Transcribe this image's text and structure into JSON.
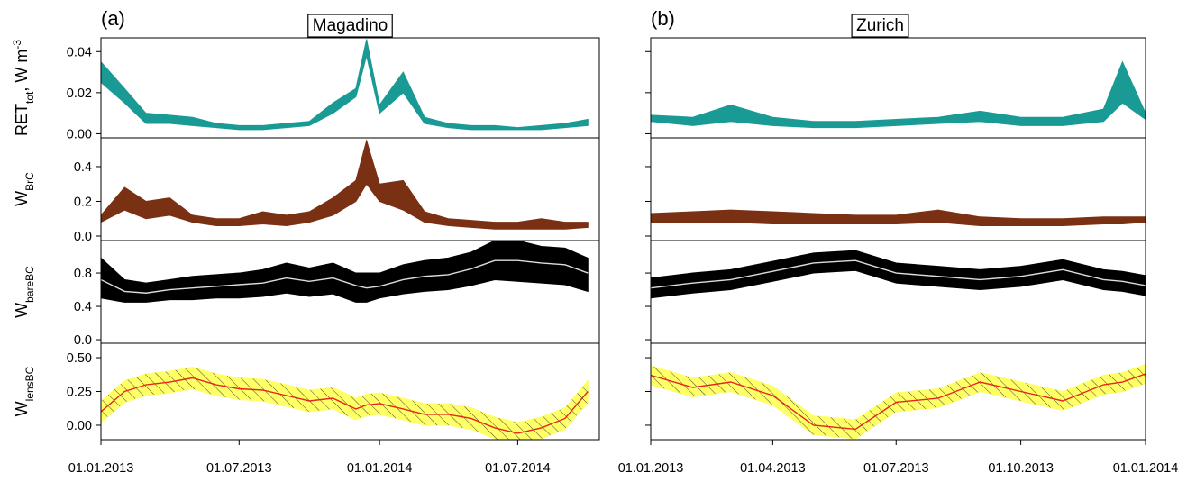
{
  "chart_data": [
    {
      "type": "band",
      "label": "(a)",
      "title": "Magadino",
      "x": [
        "2013-01-01",
        "2013-02-01",
        "2013-03-01",
        "2013-04-01",
        "2013-05-01",
        "2013-06-01",
        "2013-07-01",
        "2013-08-01",
        "2013-09-01",
        "2013-10-01",
        "2013-11-01",
        "2013-12-01",
        "2013-12-15",
        "2014-01-01",
        "2014-02-01",
        "2014-03-01",
        "2014-04-01",
        "2014-05-01",
        "2014-06-01",
        "2014-07-01",
        "2014-08-01",
        "2014-09-01",
        "2014-10-01"
      ],
      "xlim": [
        "2013-01-01",
        "2014-10-16"
      ],
      "xticks": [
        {
          "value": "2013-01-01",
          "label": "01.01.2013"
        },
        {
          "value": "2013-07-01",
          "label": "01.07.2013"
        },
        {
          "value": "2014-01-01",
          "label": "01.01.2014"
        },
        {
          "value": "2014-07-01",
          "label": "01.07.2014"
        }
      ],
      "panels": [
        {
          "ylabel": [
            {
              "text": "RET"
            },
            {
              "text": "tot",
              "shift": "sub"
            },
            {
              "text": ", W m"
            },
            {
              "text": "-3",
              "shift": "super"
            }
          ],
          "ylim": [
            -0.002,
            0.0467
          ],
          "yticks": [
            {
              "value": 0,
              "label": "0.00"
            },
            {
              "value": 0.02,
              "label": "0.02"
            },
            {
              "value": 0.04,
              "label": "0.04"
            }
          ],
          "band": {
            "color": "#1a9a94",
            "lower": [
              0.025,
              0.015,
              0.005,
              0.005,
              0.004,
              0.003,
              0.002,
              0.002,
              0.003,
              0.004,
              0.01,
              0.018,
              0.038,
              0.01,
              0.02,
              0.005,
              0.003,
              0.002,
              0.002,
              0.002,
              0.002,
              0.003,
              0.004
            ],
            "upper": [
              0.035,
              0.022,
              0.01,
              0.009,
              0.008,
              0.005,
              0.004,
              0.004,
              0.005,
              0.006,
              0.015,
              0.022,
              0.046,
              0.014,
              0.03,
              0.008,
              0.005,
              0.004,
              0.004,
              0.003,
              0.004,
              0.005,
              0.007
            ]
          }
        },
        {
          "ylabel": [
            {
              "text": "W"
            },
            {
              "text": "BrC",
              "shift": "sub"
            }
          ],
          "ylim": [
            -0.026,
            0.566
          ],
          "yticks": [
            {
              "value": 0,
              "label": "0.0"
            },
            {
              "value": 0.2,
              "label": "0.2"
            },
            {
              "value": 0.4,
              "label": "0.4"
            }
          ],
          "band": {
            "color": "#7a3012",
            "lower": [
              0.08,
              0.15,
              0.1,
              0.12,
              0.08,
              0.06,
              0.06,
              0.07,
              0.06,
              0.08,
              0.12,
              0.2,
              0.3,
              0.2,
              0.15,
              0.08,
              0.06,
              0.05,
              0.04,
              0.04,
              0.04,
              0.04,
              0.05
            ],
            "upper": [
              0.12,
              0.28,
              0.2,
              0.22,
              0.12,
              0.1,
              0.1,
              0.14,
              0.12,
              0.14,
              0.22,
              0.32,
              0.55,
              0.3,
              0.32,
              0.14,
              0.1,
              0.09,
              0.08,
              0.08,
              0.1,
              0.08,
              0.08
            ]
          }
        },
        {
          "ylabel": [
            {
              "text": "W"
            },
            {
              "text": "bareBC",
              "shift": "sub"
            }
          ],
          "ylim": [
            -0.043,
            1.19
          ],
          "yticks": [
            {
              "value": 0,
              "label": "0.0"
            },
            0.4,
            0.8
          ],
          "band": {
            "color": "#000000",
            "lower": [
              0.5,
              0.45,
              0.45,
              0.48,
              0.48,
              0.5,
              0.5,
              0.52,
              0.56,
              0.52,
              0.55,
              0.45,
              0.45,
              0.5,
              0.55,
              0.58,
              0.6,
              0.65,
              0.72,
              0.7,
              0.68,
              0.66,
              0.58
            ],
            "upper": [
              0.98,
              0.72,
              0.68,
              0.72,
              0.76,
              0.78,
              0.8,
              0.84,
              0.92,
              0.86,
              0.92,
              0.8,
              0.8,
              0.8,
              0.9,
              0.95,
              0.98,
              1.05,
              1.19,
              1.19,
              1.12,
              1.1,
              0.98
            ]
          },
          "line": {
            "color": "#dddddd",
            "values": [
              0.72,
              0.58,
              0.56,
              0.6,
              0.62,
              0.64,
              0.66,
              0.68,
              0.74,
              0.7,
              0.74,
              0.65,
              0.62,
              0.64,
              0.72,
              0.76,
              0.78,
              0.85,
              0.95,
              0.95,
              0.92,
              0.9,
              0.8
            ]
          }
        },
        {
          "ylabel": [
            {
              "text": "W"
            },
            {
              "text": "lensBC",
              "shift": "sub"
            }
          ],
          "ylim": [
            -0.107,
            0.607
          ],
          "yticks": [
            {
              "value": 0,
              "label": "0.00"
            },
            0.25,
            {
              "value": 0.5,
              "label": "0.50"
            }
          ],
          "band": {
            "color": "#ffff66",
            "hatch": true,
            "lower": [
              0.02,
              0.17,
              0.22,
              0.24,
              0.27,
              0.22,
              0.19,
              0.18,
              0.14,
              0.1,
              0.12,
              0.04,
              0.07,
              0.08,
              0.04,
              0.0,
              0.0,
              -0.03,
              -0.1,
              -0.14,
              -0.1,
              -0.03,
              0.17
            ],
            "upper": [
              0.18,
              0.33,
              0.38,
              0.4,
              0.43,
              0.38,
              0.35,
              0.34,
              0.3,
              0.26,
              0.28,
              0.2,
              0.23,
              0.24,
              0.2,
              0.16,
              0.16,
              0.13,
              0.06,
              0.02,
              0.06,
              0.13,
              0.33
            ]
          },
          "line": {
            "color": "#e8251b",
            "values": [
              0.1,
              0.25,
              0.3,
              0.32,
              0.35,
              0.3,
              0.27,
              0.26,
              0.22,
              0.18,
              0.2,
              0.12,
              0.15,
              0.16,
              0.12,
              0.08,
              0.08,
              0.05,
              -0.02,
              -0.06,
              -0.02,
              0.05,
              0.25
            ]
          }
        }
      ]
    },
    {
      "type": "band",
      "label": "(b)",
      "title": "Zurich",
      "x": [
        "2013-01-01",
        "2013-02-01",
        "2013-03-01",
        "2013-04-01",
        "2013-05-01",
        "2013-06-01",
        "2013-07-01",
        "2013-08-01",
        "2013-09-01",
        "2013-10-01",
        "2013-11-01",
        "2013-12-01",
        "2013-12-15",
        "2014-01-01"
      ],
      "xlim": [
        "2013-01-01",
        "2014-01-01"
      ],
      "xticks": [
        {
          "value": "2013-01-01",
          "label": "01.01.2013"
        },
        {
          "value": "2013-04-01",
          "label": "01.04.2013"
        },
        {
          "value": "2013-07-01",
          "label": "01.07.2013"
        },
        {
          "value": "2013-10-01",
          "label": "01.10.2013"
        },
        {
          "value": "2014-01-01",
          "label": "01.01.2014"
        }
      ],
      "panels": [
        {
          "ylim": [
            -0.002,
            0.0467
          ],
          "yticks": [
            0,
            0.02,
            0.04
          ],
          "tick_labels": false,
          "band": {
            "color": "#1a9a94",
            "lower": [
              0.006,
              0.004,
              0.006,
              0.004,
              0.003,
              0.003,
              0.004,
              0.005,
              0.006,
              0.004,
              0.004,
              0.006,
              0.015,
              0.007
            ],
            "upper": [
              0.009,
              0.008,
              0.014,
              0.008,
              0.006,
              0.006,
              0.007,
              0.008,
              0.011,
              0.008,
              0.008,
              0.012,
              0.035,
              0.01
            ]
          }
        },
        {
          "ylim": [
            -0.026,
            0.566
          ],
          "yticks": [
            0,
            0.2,
            0.4
          ],
          "tick_labels": false,
          "band": {
            "color": "#7a3012",
            "lower": [
              0.08,
              0.08,
              0.08,
              0.07,
              0.07,
              0.07,
              0.07,
              0.08,
              0.06,
              0.06,
              0.06,
              0.07,
              0.07,
              0.08
            ],
            "upper": [
              0.13,
              0.14,
              0.15,
              0.14,
              0.13,
              0.12,
              0.12,
              0.15,
              0.11,
              0.1,
              0.1,
              0.11,
              0.11,
              0.11
            ]
          }
        },
        {
          "ylim": [
            -0.043,
            1.19
          ],
          "yticks": [
            0,
            0.4,
            0.8
          ],
          "tick_labels": false,
          "band": {
            "color": "#000000",
            "lower": [
              0.5,
              0.56,
              0.6,
              0.7,
              0.8,
              0.83,
              0.68,
              0.64,
              0.6,
              0.64,
              0.72,
              0.6,
              0.58,
              0.53
            ],
            "upper": [
              0.74,
              0.8,
              0.84,
              0.94,
              1.04,
              1.07,
              0.92,
              0.88,
              0.84,
              0.88,
              0.96,
              0.84,
              0.82,
              0.77
            ]
          },
          "line": {
            "color": "#dddddd",
            "values": [
              0.62,
              0.68,
              0.72,
              0.82,
              0.92,
              0.95,
              0.8,
              0.76,
              0.72,
              0.76,
              0.84,
              0.72,
              0.7,
              0.65
            ]
          }
        },
        {
          "ylim": [
            -0.107,
            0.607
          ],
          "yticks": [
            0,
            0.25,
            0.5
          ],
          "tick_labels": false,
          "band": {
            "color": "#ffff66",
            "hatch": true,
            "lower": [
              0.3,
              0.21,
              0.25,
              0.15,
              -0.07,
              -0.1,
              0.1,
              0.13,
              0.25,
              0.18,
              0.11,
              0.23,
              0.25,
              0.31
            ],
            "upper": [
              0.44,
              0.35,
              0.39,
              0.29,
              0.07,
              0.04,
              0.24,
              0.27,
              0.39,
              0.32,
              0.25,
              0.37,
              0.39,
              0.45
            ]
          },
          "line": {
            "color": "#e8251b",
            "values": [
              0.37,
              0.28,
              0.32,
              0.22,
              0.0,
              -0.03,
              0.17,
              0.2,
              0.32,
              0.25,
              0.18,
              0.3,
              0.32,
              0.38
            ]
          }
        }
      ]
    }
  ]
}
